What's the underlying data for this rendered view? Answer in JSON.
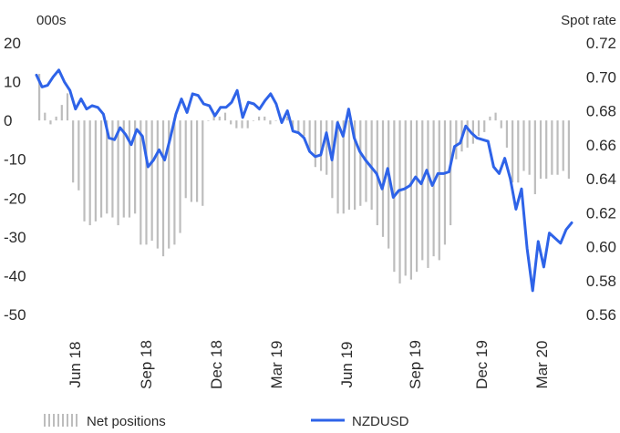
{
  "chart_data": {
    "type": "bar+line",
    "left_axis_unit": "000s",
    "right_axis_title": "Spot rate",
    "left_ticks": [
      "20",
      "10",
      "0",
      "-10",
      "-20",
      "-30",
      "-40",
      "-50"
    ],
    "right_ticks": [
      "0.72",
      "0.70",
      "0.68",
      "0.66",
      "0.64",
      "0.62",
      "0.60",
      "0.58",
      "0.56"
    ],
    "left_ylim": [
      -50,
      20
    ],
    "right_ylim": [
      0.56,
      0.72
    ],
    "x_tick_labels": [
      "Jun 18",
      "Sep 18",
      "Dec 18",
      "Mar 19",
      "Jun 19",
      "Sep 19",
      "Dec 19",
      "Mar 20"
    ],
    "colors": {
      "bars": "#bdbdbd",
      "line": "#2e63e8"
    },
    "series": [
      {
        "name": "Net positions",
        "kind": "bar",
        "axis": "left",
        "values": [
          12,
          2,
          -1,
          1,
          4,
          7,
          -16,
          -18,
          -26,
          -27,
          -26,
          -25,
          -24,
          -25,
          -27,
          -25,
          -25,
          -24,
          -32,
          -32,
          -31,
          -33,
          -35,
          -33,
          -32,
          -29,
          -20,
          -21,
          -21,
          -22,
          0,
          2,
          1,
          2,
          -1,
          -2,
          -2,
          -2,
          0,
          1,
          1,
          -1,
          0,
          0,
          1,
          -2,
          -3,
          -4,
          -8,
          -12,
          -13,
          -14,
          -20,
          -24,
          -24,
          -23,
          -23,
          -22,
          -21,
          -23,
          -27,
          -30,
          -33,
          -39,
          -42,
          -40,
          -41,
          -39,
          -36,
          -38,
          -35,
          -36,
          -32,
          -27,
          -10,
          -8,
          -7,
          -6,
          -4,
          -3,
          1,
          2,
          -2,
          -7,
          -16,
          -16,
          -13,
          -14,
          -19,
          -15,
          -15,
          -14,
          -14,
          -13,
          -15
        ]
      },
      {
        "name": "NZDUSD",
        "kind": "line",
        "axis": "right",
        "values": [
          0.701,
          0.694,
          0.695,
          0.7,
          0.704,
          0.697,
          0.692,
          0.681,
          0.687,
          0.681,
          0.683,
          0.682,
          0.678,
          0.664,
          0.663,
          0.67,
          0.666,
          0.66,
          0.669,
          0.665,
          0.647,
          0.651,
          0.657,
          0.651,
          0.664,
          0.678,
          0.687,
          0.679,
          0.69,
          0.689,
          0.684,
          0.683,
          0.677,
          0.682,
          0.682,
          0.685,
          0.692,
          0.676,
          0.685,
          0.684,
          0.681,
          0.686,
          0.69,
          0.684,
          0.673,
          0.68,
          0.668,
          0.667,
          0.664,
          0.656,
          0.653,
          0.654,
          0.667,
          0.651,
          0.673,
          0.665,
          0.681,
          0.664,
          0.656,
          0.651,
          0.647,
          0.643,
          0.634,
          0.646,
          0.629,
          0.633,
          0.634,
          0.636,
          0.641,
          0.637,
          0.645,
          0.636,
          0.643,
          0.643,
          0.644,
          0.659,
          0.661,
          0.671,
          0.667,
          0.664,
          0.663,
          0.662,
          0.647,
          0.643,
          0.652,
          0.64,
          0.622,
          0.634,
          0.599,
          0.574,
          0.603,
          0.588,
          0.608,
          0.605,
          0.602,
          0.61,
          0.614
        ]
      }
    ],
    "legend": {
      "position": "bottom",
      "items": [
        {
          "label": "Net positions",
          "kind": "bar"
        },
        {
          "label": "NZDUSD",
          "kind": "line"
        }
      ]
    },
    "grid": false
  }
}
